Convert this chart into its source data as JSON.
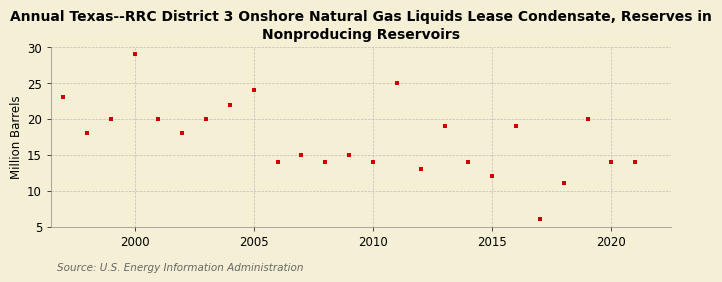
{
  "title": "Annual Texas--RRC District 3 Onshore Natural Gas Liquids Lease Condensate, Reserves in\nNonproducing Reservoirs",
  "ylabel": "Million Barrels",
  "source": "Source: U.S. Energy Information Administration",
  "background_color": "#f5efd5",
  "plot_background_color": "#f5efd5",
  "marker_color": "#cc0000",
  "years": [
    1997,
    1998,
    1999,
    2000,
    2001,
    2002,
    2003,
    2004,
    2005,
    2006,
    2007,
    2008,
    2009,
    2010,
    2011,
    2012,
    2013,
    2014,
    2015,
    2016,
    2017,
    2018,
    2019,
    2020,
    2021
  ],
  "values": [
    23,
    18,
    20,
    29,
    20,
    18,
    20,
    22,
    24,
    14,
    15,
    14,
    15,
    14,
    25,
    13,
    19,
    14,
    12,
    19,
    6,
    11,
    20,
    14,
    14
  ],
  "ylim": [
    5,
    30
  ],
  "yticks": [
    5,
    10,
    15,
    20,
    25,
    30
  ],
  "xlim": [
    1996.5,
    2022.5
  ],
  "xticks": [
    2000,
    2005,
    2010,
    2015,
    2020
  ],
  "grid_color": "#aaaaaa",
  "title_fontsize": 10,
  "axis_fontsize": 8.5,
  "source_fontsize": 7.5
}
